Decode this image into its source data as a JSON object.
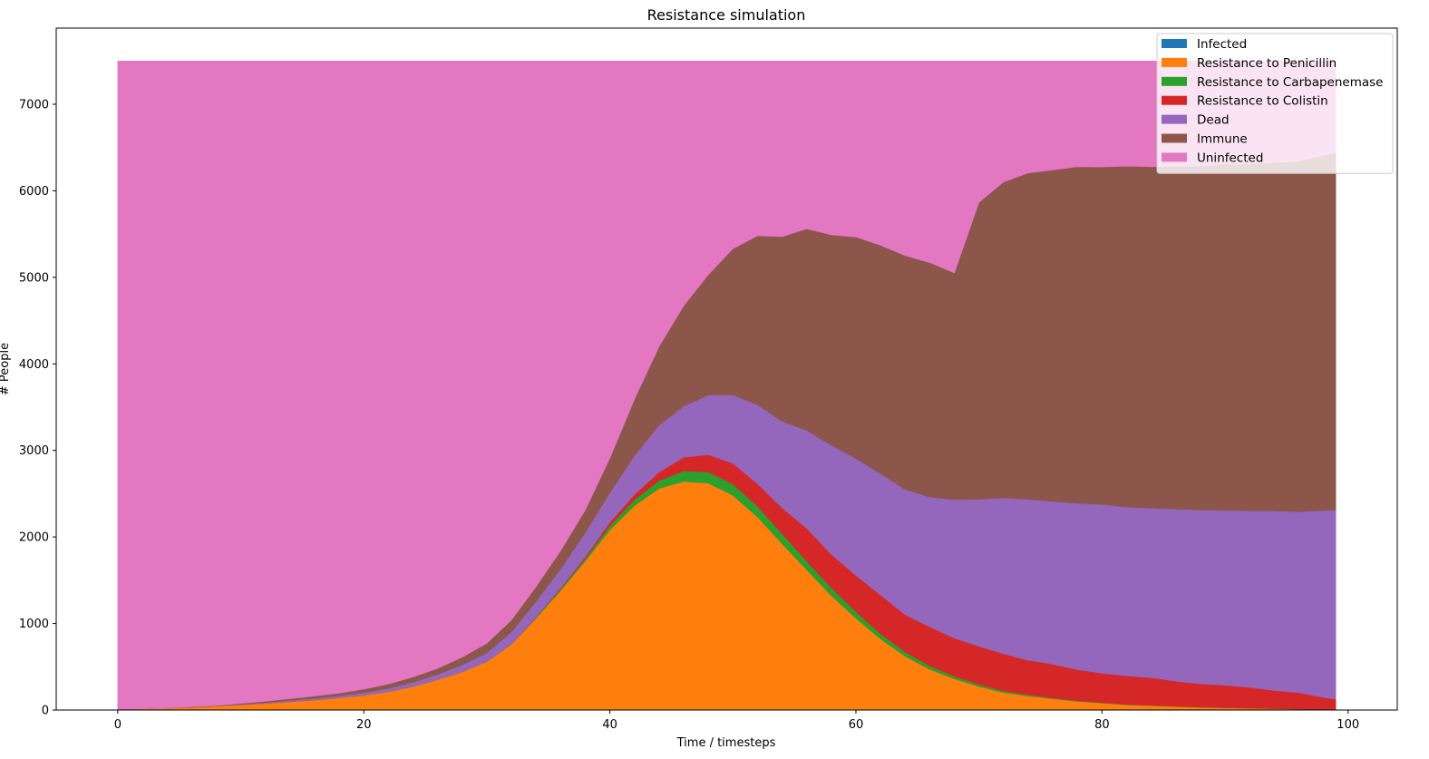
{
  "chart_data": {
    "type": "area",
    "stacked": true,
    "title": "Resistance simulation",
    "xlabel": "Time / timesteps",
    "ylabel": "# People",
    "xlim": [
      -5,
      104
    ],
    "ylim": [
      0,
      7880
    ],
    "xticks": [
      0,
      20,
      40,
      60,
      80,
      100
    ],
    "yticks": [
      0,
      1000,
      2000,
      3000,
      4000,
      5000,
      6000,
      7000
    ],
    "legend_position": "top-right",
    "total_population": 7500,
    "x": [
      0,
      2,
      4,
      6,
      8,
      10,
      12,
      14,
      16,
      18,
      20,
      22,
      24,
      26,
      28,
      30,
      32,
      34,
      36,
      38,
      40,
      42,
      44,
      46,
      48,
      50,
      52,
      54,
      56,
      58,
      60,
      62,
      64,
      66,
      68,
      70,
      72,
      74,
      76,
      78,
      80,
      82,
      84,
      86,
      88,
      90,
      92,
      94,
      96,
      98,
      99
    ],
    "series": [
      {
        "name": "Infected",
        "color": "#1f77b4",
        "values": [
          5,
          3,
          2,
          2,
          1,
          1,
          1,
          1,
          1,
          1,
          1,
          1,
          1,
          1,
          1,
          1,
          1,
          1,
          1,
          1,
          1,
          1,
          1,
          1,
          1,
          1,
          1,
          1,
          1,
          1,
          1,
          1,
          1,
          1,
          1,
          1,
          1,
          1,
          0,
          0,
          0,
          0,
          0,
          0,
          0,
          0,
          0,
          0,
          0,
          0,
          0
        ]
      },
      {
        "name": "Resistance to Penicillin",
        "color": "#ff7f0e",
        "values": [
          5,
          10,
          20,
          30,
          45,
          60,
          75,
          95,
          115,
          140,
          170,
          210,
          270,
          350,
          440,
          560,
          760,
          1060,
          1380,
          1720,
          2080,
          2360,
          2560,
          2640,
          2620,
          2480,
          2230,
          1920,
          1620,
          1320,
          1060,
          820,
          620,
          470,
          360,
          270,
          200,
          160,
          130,
          100,
          80,
          60,
          50,
          40,
          30,
          25,
          20,
          15,
          10,
          5,
          5
        ]
      },
      {
        "name": "Resistance to Carbapenemase",
        "color": "#2ca02c",
        "values": [
          0,
          0,
          0,
          0,
          0,
          0,
          0,
          0,
          0,
          0,
          0,
          0,
          0,
          0,
          0,
          0,
          0,
          10,
          20,
          30,
          50,
          70,
          90,
          120,
          130,
          130,
          125,
          115,
          100,
          90,
          75,
          60,
          50,
          40,
          30,
          25,
          20,
          15,
          10,
          8,
          6,
          5,
          4,
          3,
          3,
          2,
          2,
          1,
          1,
          1,
          1
        ]
      },
      {
        "name": "Resistance to Colistin",
        "color": "#d62728",
        "values": [
          0,
          0,
          0,
          0,
          0,
          0,
          0,
          0,
          0,
          0,
          0,
          0,
          0,
          0,
          0,
          0,
          0,
          5,
          10,
          20,
          40,
          60,
          100,
          160,
          200,
          240,
          260,
          300,
          380,
          390,
          420,
          450,
          430,
          450,
          440,
          440,
          430,
          400,
          390,
          360,
          340,
          330,
          320,
          290,
          270,
          260,
          240,
          210,
          190,
          140,
          120
        ]
      },
      {
        "name": "Dead",
        "color": "#9467bd",
        "values": [
          0,
          0,
          0,
          0,
          0,
          5,
          10,
          15,
          20,
          25,
          30,
          40,
          50,
          60,
          80,
          100,
          140,
          180,
          220,
          280,
          340,
          450,
          540,
          590,
          690,
          790,
          910,
          1000,
          1130,
          1260,
          1350,
          1400,
          1450,
          1500,
          1600,
          1700,
          1800,
          1860,
          1880,
          1920,
          1950,
          1950,
          1960,
          1990,
          2010,
          2020,
          2040,
          2075,
          2090,
          2160,
          2185
        ]
      },
      {
        "name": "Immune",
        "color": "#8c564b",
        "values": [
          0,
          0,
          0,
          5,
          5,
          10,
          15,
          20,
          25,
          30,
          40,
          50,
          60,
          70,
          90,
          110,
          140,
          170,
          210,
          260,
          400,
          650,
          910,
          1160,
          1390,
          1690,
          1955,
          2135,
          2330,
          2430,
          2560,
          2640,
          2700,
          2710,
          2620,
          3430,
          3650,
          3770,
          3830,
          3890,
          3900,
          3940,
          3945,
          3960,
          3970,
          4000,
          4010,
          4025,
          4050,
          4105,
          4125
        ]
      },
      {
        "name": "Uninfected",
        "color": "#e377c2",
        "values": [
          7490,
          7487,
          7478,
          7463,
          7449,
          7424,
          7399,
          7369,
          7339,
          7304,
          7259,
          7199,
          7119,
          7019,
          6889,
          6729,
          6459,
          6074,
          5659,
          5189,
          4589,
          3909,
          3299,
          2829,
          2469,
          2169,
          2019,
          2029,
          1939,
          2009,
          2034,
          2129,
          2249,
          2329,
          2449,
          1634,
          1399,
          1294,
          1260,
          1222,
          1224,
          1215,
          1221,
          1217,
          1217,
          1193,
          1188,
          1174,
          1159,
          1089,
          1064
        ]
      }
    ]
  }
}
